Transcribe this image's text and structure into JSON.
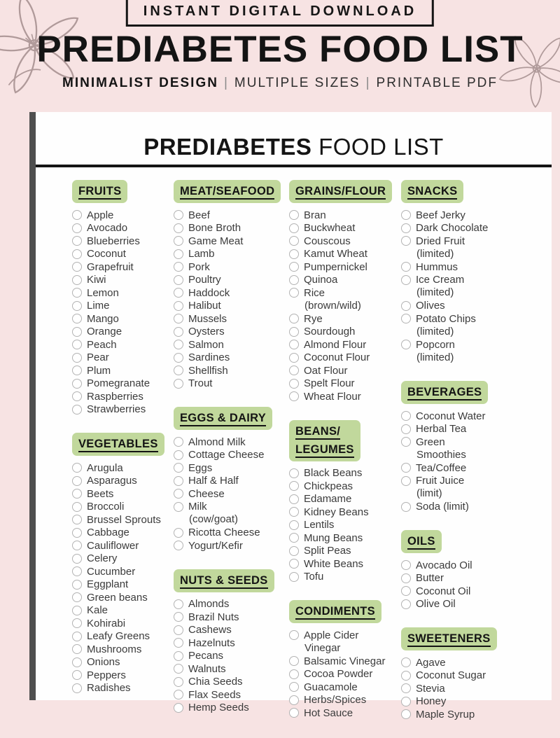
{
  "banner": {
    "download_label": "INSTANT DIGITAL DOWNLOAD",
    "title": "PREDIABETES FOOD LIST",
    "subtitle_bold": "MINIMALIST DESIGN",
    "separator": "|",
    "subtitle_item2": "MULTIPLE SIZES",
    "subtitle_item3": "PRINTABLE PDF"
  },
  "colors": {
    "banner_background": "#f7e3e3",
    "category_highlight": "#c1d89c",
    "page_background": "#fefefe",
    "page_edge_shadow": "#4f4f4f",
    "text": "#141414"
  },
  "icons": {
    "decor_left": "flower-line-art",
    "decor_right": "flower-line-art",
    "list_marker": "empty-circle-checkbox"
  },
  "page": {
    "title_bold": "PREDIABETES",
    "title_rest": "FOOD LIST",
    "columns": [
      {
        "sections": [
          {
            "title_lines": [
              "FRUITS"
            ],
            "items": [
              "Apple",
              "Avocado",
              "Blueberries",
              "Coconut",
              "Grapefruit",
              "Kiwi",
              "Lemon",
              "Lime",
              "Mango",
              "Orange",
              "Peach",
              "Pear",
              "Plum",
              "Pomegranate",
              "Raspberries",
              "Strawberries"
            ]
          },
          {
            "title_lines": [
              "VEGETABLES"
            ],
            "items": [
              "Arugula",
              "Asparagus",
              "Beets",
              "Broccoli",
              "Brussel Sprouts",
              "Cabbage",
              "Cauliflower",
              "Celery",
              "Cucumber",
              "Eggplant",
              "Green beans",
              "Kale",
              "Kohirabi",
              "Leafy Greens",
              "Mushrooms",
              "Onions",
              "Peppers",
              "Radishes"
            ]
          }
        ]
      },
      {
        "sections": [
          {
            "title_lines": [
              "MEAT/SEAFOOD"
            ],
            "items": [
              "Beef",
              "Bone Broth",
              "Game Meat",
              "Lamb",
              "Pork",
              "Poultry",
              "Haddock",
              "Halibut",
              "Mussels",
              "Oysters",
              "Salmon",
              "Sardines",
              "Shellfish",
              "Trout"
            ]
          },
          {
            "title_lines": [
              "EGGS & DAIRY"
            ],
            "items": [
              "Almond Milk",
              "Cottage Cheese",
              "Eggs",
              "Half & Half",
              "Cheese",
              {
                "lines": [
                  "Milk",
                  "(cow/goat)"
                ]
              },
              "Ricotta Cheese",
              "Yogurt/Kefir"
            ]
          },
          {
            "title_lines": [
              "NUTS & SEEDS"
            ],
            "items": [
              "Almonds",
              "Brazil Nuts",
              "Cashews",
              "Hazelnuts",
              "Pecans",
              "Walnuts",
              "Chia Seeds",
              "Flax Seeds",
              "Hemp Seeds"
            ]
          }
        ]
      },
      {
        "sections": [
          {
            "title_lines": [
              "GRAINS/FLOUR"
            ],
            "items": [
              "Bran",
              "Buckwheat",
              "Couscous",
              "Kamut Wheat",
              "Pumpernickel",
              "Quinoa",
              {
                "lines": [
                  "Rice",
                  "(brown/wild)"
                ]
              },
              "Rye",
              "Sourdough",
              "Almond Flour",
              "Coconut Flour",
              "Oat Flour",
              "Spelt Flour",
              "Wheat Flour"
            ]
          },
          {
            "title_lines": [
              "BEANS/",
              "LEGUMES"
            ],
            "items": [
              "Black Beans",
              "Chickpeas",
              "Edamame",
              "Kidney Beans",
              "Lentils",
              "Mung Beans",
              "Split Peas",
              "White Beans",
              "Tofu"
            ]
          },
          {
            "title_lines": [
              "CONDIMENTS"
            ],
            "items": [
              {
                "lines": [
                  "Apple Cider",
                  "Vinegar"
                ]
              },
              "Balsamic Vinegar",
              "Cocoa Powder",
              "Guacamole",
              "Herbs/Spices",
              "Hot Sauce"
            ]
          }
        ]
      },
      {
        "sections": [
          {
            "title_lines": [
              "SNACKS"
            ],
            "items": [
              "Beef Jerky",
              "Dark Chocolate",
              {
                "lines": [
                  "Dried Fruit",
                  "(limited)"
                ]
              },
              "Hummus",
              {
                "lines": [
                  "Ice Cream",
                  "(limited)"
                ]
              },
              "Olives",
              {
                "lines": [
                  "Potato Chips",
                  "(limited)"
                ]
              },
              {
                "lines": [
                  "Popcorn",
                  "(limited)"
                ]
              }
            ]
          },
          {
            "title_lines": [
              "BEVERAGES"
            ],
            "items": [
              "Coconut Water",
              "Herbal Tea",
              {
                "lines": [
                  "Green",
                  "Smoothies"
                ]
              },
              "Tea/Coffee",
              {
                "lines": [
                  "Fruit Juice",
                  "(limit)"
                ]
              },
              "Soda (limit)"
            ]
          },
          {
            "title_lines": [
              "OILS"
            ],
            "items": [
              "Avocado Oil",
              "Butter",
              "Coconut Oil",
              "Olive Oil"
            ]
          },
          {
            "title_lines": [
              "SWEETENERS"
            ],
            "items": [
              "Agave",
              "Coconut Sugar",
              "Stevia",
              "Honey",
              "Maple Syrup"
            ]
          }
        ]
      }
    ]
  }
}
